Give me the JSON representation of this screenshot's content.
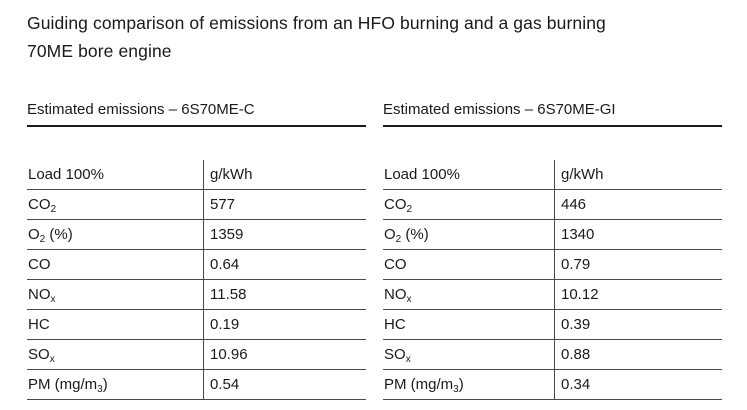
{
  "title_line1": "Guiding comparison of emissions from an HFO burning and a gas burning",
  "title_line2": "70ME bore engine",
  "tables": [
    {
      "heading": "Estimated emissions – 6S70ME-C",
      "header": {
        "label": "Load 100%",
        "unit": "g/kWh"
      },
      "rows": [
        {
          "label": "CO",
          "sub": "2",
          "suffix": "",
          "value": "577"
        },
        {
          "label": "O",
          "sub": "2",
          "suffix": " (%)",
          "value": "1359"
        },
        {
          "label": "CO",
          "sub": "",
          "suffix": "",
          "value": "0.64"
        },
        {
          "label": "NO",
          "sub": "x",
          "suffix": "",
          "value": "11.58"
        },
        {
          "label": "HC",
          "sub": "",
          "suffix": "",
          "value": "0.19"
        },
        {
          "label": "SO",
          "sub": "x",
          "suffix": "",
          "value": "10.96"
        },
        {
          "label": "PM (mg/m",
          "sub": "3",
          "suffix": ")",
          "value": "0.54"
        }
      ]
    },
    {
      "heading": "Estimated emissions – 6S70ME-GI",
      "header": {
        "label": "Load 100%",
        "unit": "g/kWh"
      },
      "rows": [
        {
          "label": "CO",
          "sub": "2",
          "suffix": "",
          "value": "446"
        },
        {
          "label": "O",
          "sub": "2",
          "suffix": " (%)",
          "value": "1340"
        },
        {
          "label": "CO",
          "sub": "",
          "suffix": "",
          "value": "0.79"
        },
        {
          "label": "NO",
          "sub": "x",
          "suffix": "",
          "value": "10.12"
        },
        {
          "label": "HC",
          "sub": "",
          "suffix": "",
          "value": "0.39"
        },
        {
          "label": "SO",
          "sub": "x",
          "suffix": "",
          "value": "0.88"
        },
        {
          "label": "PM (mg/m",
          "sub": "3",
          "suffix": ")",
          "value": "0.34"
        }
      ]
    }
  ]
}
